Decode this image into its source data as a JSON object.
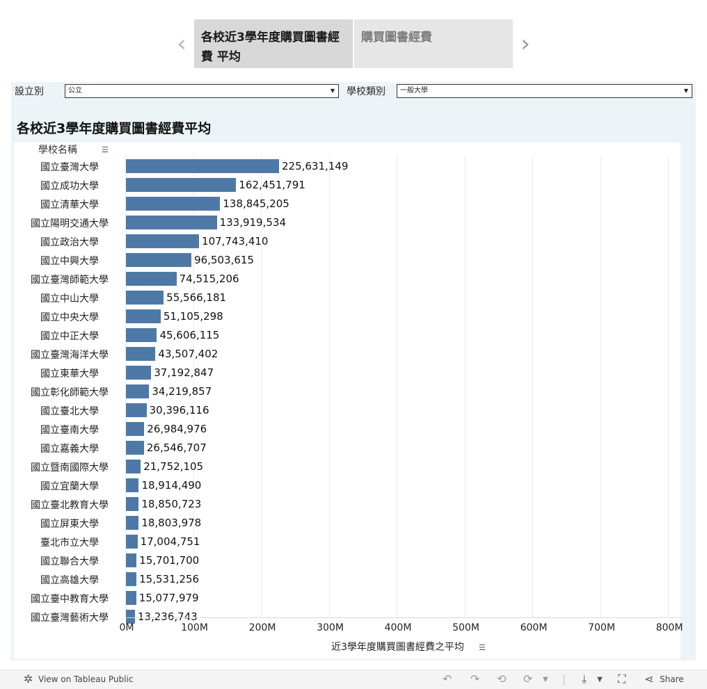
{
  "story": {
    "prev_icon": "chevron-left-icon",
    "next_icon": "chevron-right-icon",
    "tabs": [
      {
        "label": "各校近3學年度購買圖書經費 平均"
      },
      {
        "label": "購買圖書經費"
      }
    ]
  },
  "filters": [
    {
      "label": "設立別",
      "value": "公立"
    },
    {
      "label": "學校類別",
      "value": "一般大學"
    }
  ],
  "chart_title": "各校近3學年度購買圖書經費平均",
  "row_header": "學校名稱",
  "chart_data": {
    "type": "bar",
    "orientation": "horizontal",
    "title": "各校近3學年度購買圖書經費平均",
    "ylabel": "學校名稱",
    "xlabel": "近3學年度購買圖書經費之平均",
    "xlim": [
      0,
      800000000
    ],
    "x_ticks": [
      "0M",
      "100M",
      "200M",
      "300M",
      "400M",
      "500M",
      "600M",
      "700M",
      "800M"
    ],
    "x_tick_values": [
      0,
      100000000,
      200000000,
      300000000,
      400000000,
      500000000,
      600000000,
      700000000,
      800000000
    ],
    "bar_color": "#4e79a7",
    "categories": [
      "國立臺灣大學",
      "國立成功大學",
      "國立清華大學",
      "國立陽明交通大學",
      "國立政治大學",
      "國立中興大學",
      "國立臺灣師範大學",
      "國立中山大學",
      "國立中央大學",
      "國立中正大學",
      "國立臺灣海洋大學",
      "國立東華大學",
      "國立彰化師範大學",
      "國立臺北大學",
      "國立臺南大學",
      "國立嘉義大學",
      "國立暨南國際大學",
      "國立宜蘭大學",
      "國立臺北教育大學",
      "國立屏東大學",
      "臺北市立大學",
      "國立聯合大學",
      "國立高雄大學",
      "國立臺中教育大學",
      "國立臺灣藝術大學"
    ],
    "values": [
      225631149,
      162451791,
      138845205,
      133919534,
      107743410,
      96503615,
      74515206,
      55566181,
      51105298,
      45606115,
      43507402,
      37192847,
      34219857,
      30396116,
      26984976,
      26546707,
      21752105,
      18914490,
      18850723,
      18803978,
      17004751,
      15701700,
      15531256,
      15077979,
      13236743
    ],
    "value_labels": [
      "225,631,149",
      "162,451,791",
      "138,845,205",
      "133,919,534",
      "107,743,410",
      "96,503,615",
      "74,515,206",
      "55,566,181",
      "51,105,298",
      "45,606,115",
      "43,507,402",
      "37,192,847",
      "34,219,857",
      "30,396,116",
      "26,984,976",
      "26,546,707",
      "21,752,105",
      "18,914,490",
      "18,850,723",
      "18,803,978",
      "17,004,751",
      "15,701,700",
      "15,531,256",
      "15,077,979",
      "13,236,743"
    ]
  },
  "footer": {
    "view_on": "View on Tableau Public",
    "share": "Share"
  }
}
